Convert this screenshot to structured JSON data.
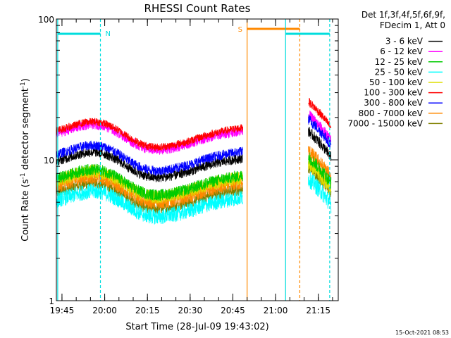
{
  "chart_data": {
    "type": "line",
    "title": "RHESSI Count Rates",
    "xlabel": "Start Time (28-Jul-09 19:43:02)",
    "ylabel_main": "Count Rate (s",
    "ylabel_exp": "-1",
    "ylabel_rest": " detector segment",
    "ylabel_exp2": "-1",
    "ylabel_close": ")",
    "yscale": "log",
    "ylim": [
      1,
      100
    ],
    "y_ticks": [
      "1",
      "10",
      "100"
    ],
    "x_range_minutes": [
      "19:43:02",
      "21:22:00"
    ],
    "x_ticks": [
      "19:45",
      "20:00",
      "20:15",
      "20:30",
      "20:45",
      "21:00",
      "21:15"
    ],
    "legend_header": [
      "Det 1f,3f,4f,5f,6f,9f,",
      "FDecim 1, Att 0"
    ],
    "legend_position": "outside-right",
    "series": [
      {
        "name": "3 - 6 keV",
        "color": "#000000"
      },
      {
        "name": "6 - 12 keV",
        "color": "#ff00ff"
      },
      {
        "name": "12 - 25 keV",
        "color": "#00cc00"
      },
      {
        "name": "25 - 50 keV",
        "color": "#00ffff"
      },
      {
        "name": "50 - 100 keV",
        "color": "#dddd00"
      },
      {
        "name": "100 - 300 keV",
        "color": "#ff0000"
      },
      {
        "name": "300 - 800 keV",
        "color": "#0000ff"
      },
      {
        "name": "800 - 7000 keV",
        "color": "#ff8800"
      },
      {
        "name": "7000 - 15000 keV",
        "color": "#808000"
      }
    ],
    "annotations": {
      "night_label": "N",
      "saa_label": "S"
    },
    "timestamp": "15-Oct-2021 08:53"
  }
}
